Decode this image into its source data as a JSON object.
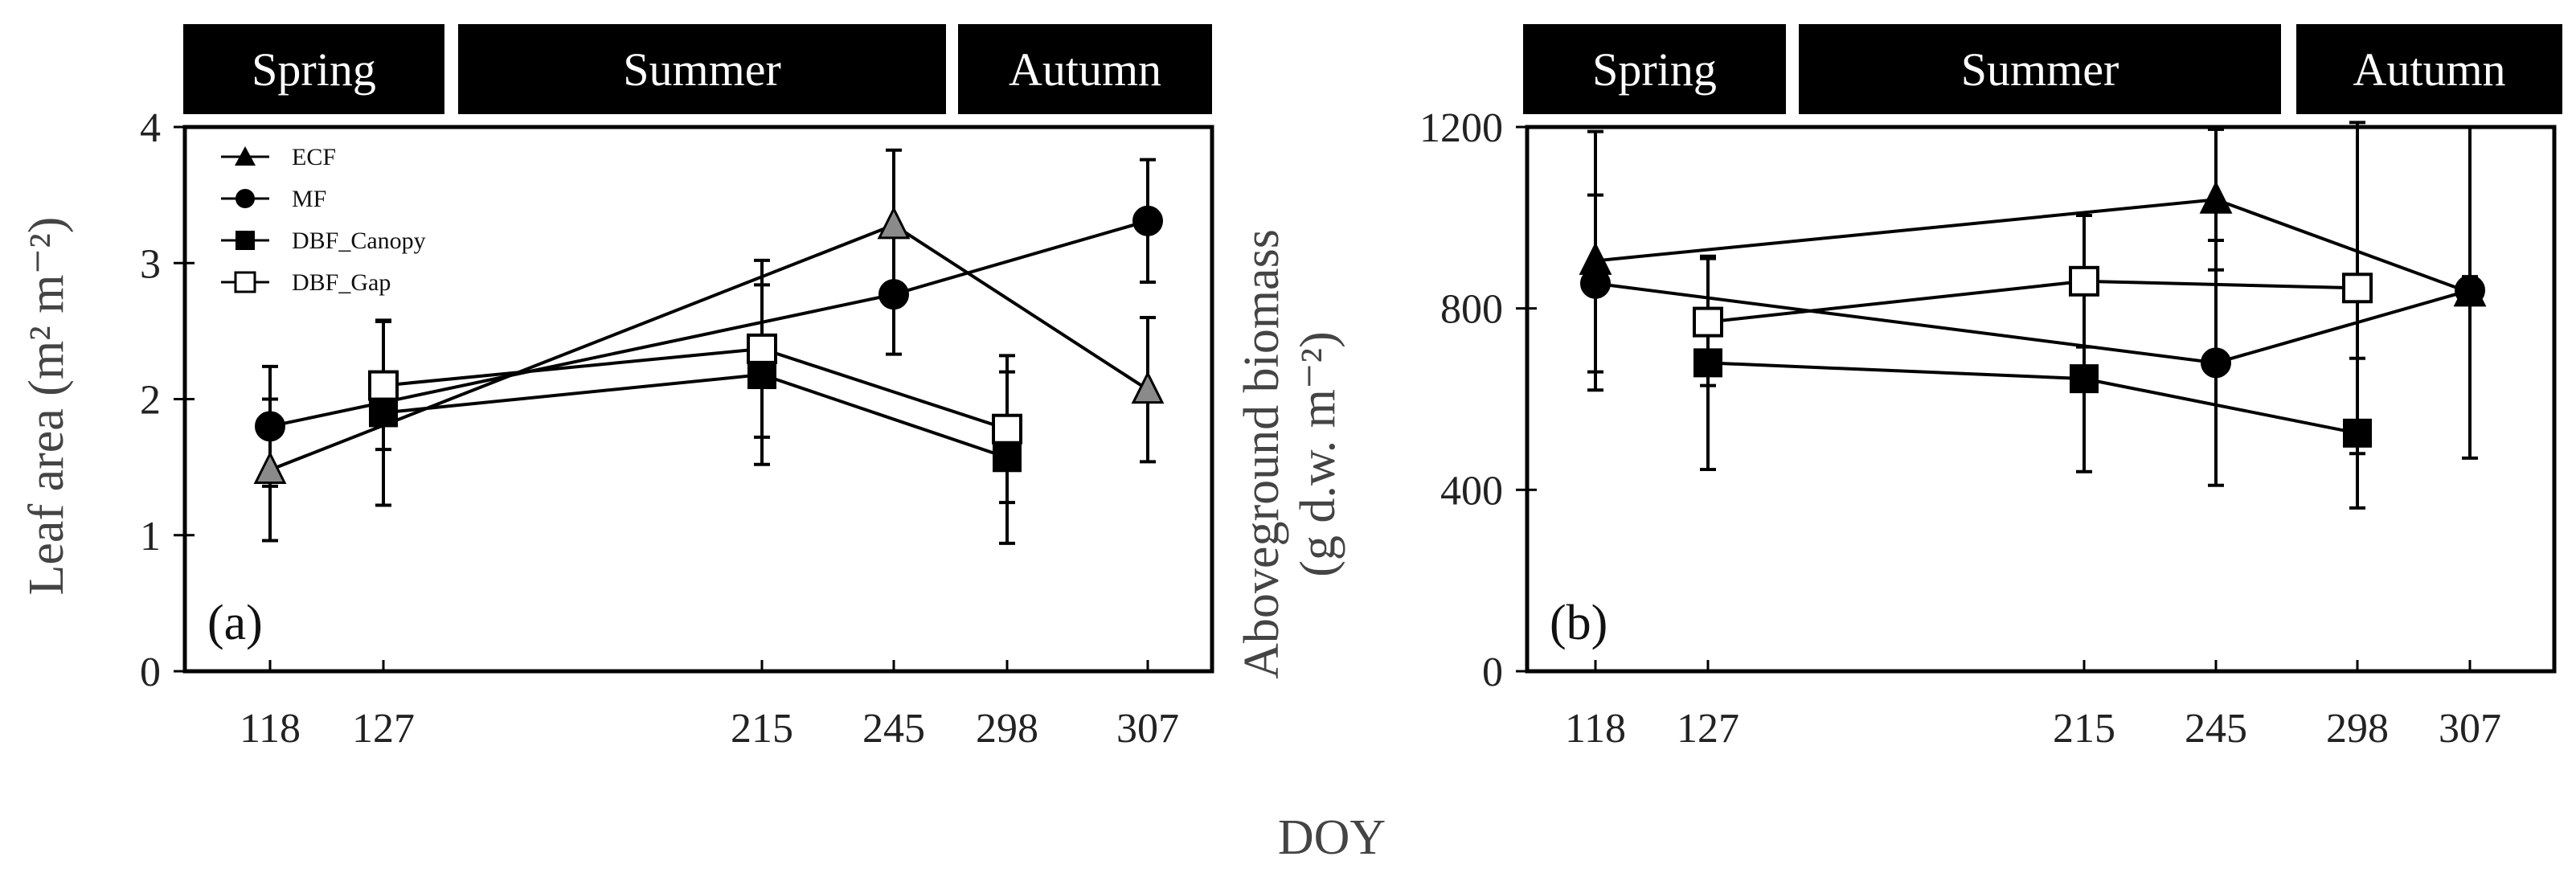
{
  "figure": {
    "shared_xlabel": "DOY"
  },
  "chart_data": [
    {
      "type": "line",
      "panel_label": "(a)",
      "ylabel": "Leaf area (m² m⁻²)",
      "xlabel": "DOY",
      "ylim": [
        0,
        4
      ],
      "yticks": [
        "0",
        "1",
        "2",
        "3",
        "4"
      ],
      "x_categories": [
        "118",
        "127",
        "215",
        "245",
        "298",
        "307"
      ],
      "seasons": [
        {
          "label": "Spring",
          "from": "118",
          "to": "127"
        },
        {
          "label": "Summer",
          "from": "215",
          "to": "245"
        },
        {
          "label": "Autumn",
          "from": "298",
          "to": "307"
        }
      ],
      "legend": [
        "ECF",
        "MF",
        "DBF_Canopy",
        "DBF_Gap"
      ],
      "series": [
        {
          "name": "ECF",
          "marker": "triangle-gray",
          "points": [
            {
              "x": 118,
              "y": 1.48,
              "err": 0.52
            },
            {
              "x": 245,
              "y": 3.28,
              "err": 0.55
            },
            {
              "x": 307,
              "y": 2.07,
              "err": 0.53
            }
          ]
        },
        {
          "name": "MF",
          "marker": "circle-filled",
          "points": [
            {
              "x": 118,
              "y": 1.8,
              "err": 0.44
            },
            {
              "x": 245,
              "y": 2.77,
              "err": 0.44
            },
            {
              "x": 307,
              "y": 3.31,
              "err": 0.45
            }
          ]
        },
        {
          "name": "DBF_Canopy",
          "marker": "square-filled",
          "points": [
            {
              "x": 127,
              "y": 1.9,
              "err": 0.68
            },
            {
              "x": 215,
              "y": 2.18,
              "err": 0.66
            },
            {
              "x": 298,
              "y": 1.57,
              "err": 0.63
            }
          ]
        },
        {
          "name": "DBF_Gap",
          "marker": "square-open",
          "points": [
            {
              "x": 127,
              "y": 2.1,
              "err": 0.47
            },
            {
              "x": 215,
              "y": 2.37,
              "err": 0.65
            },
            {
              "x": 298,
              "y": 1.78,
              "err": 0.54
            }
          ]
        }
      ]
    },
    {
      "type": "line",
      "panel_label": "(b)",
      "ylabel_line1": "Aboveground biomass",
      "ylabel_line2": "(g d.w. m⁻²)",
      "xlabel": "DOY",
      "ylim": [
        0,
        1200
      ],
      "yticks": [
        "0",
        "400",
        "800",
        "1200"
      ],
      "x_categories": [
        "118",
        "127",
        "215",
        "245",
        "298",
        "307"
      ],
      "seasons": [
        {
          "label": "Spring",
          "from": "118",
          "to": "127"
        },
        {
          "label": "Summer",
          "from": "215",
          "to": "245"
        },
        {
          "label": "Autumn",
          "from": "298",
          "to": "307"
        }
      ],
      "series": [
        {
          "name": "ECF",
          "marker": "triangle-filled",
          "points": [
            {
              "x": 118,
              "y": 905,
              "err": 285
            },
            {
              "x": 245,
              "y": 1040,
              "err": 155
            },
            {
              "x": 307,
              "y": 835,
              "err": 365
            }
          ]
        },
        {
          "name": "MF",
          "marker": "circle-filled",
          "points": [
            {
              "x": 118,
              "y": 855,
              "err": 195
            },
            {
              "x": 245,
              "y": 680,
              "err": 270
            },
            {
              "x": 307,
              "y": 840,
              "err": 30
            }
          ]
        },
        {
          "name": "DBF_Canopy",
          "marker": "square-filled",
          "points": [
            {
              "x": 127,
              "y": 680,
              "err": 235
            },
            {
              "x": 215,
              "y": 645,
              "err": 205
            },
            {
              "x": 298,
              "y": 525,
              "err": 165
            }
          ]
        },
        {
          "name": "DBF_Gap",
          "marker": "square-open",
          "points": [
            {
              "x": 127,
              "y": 770,
              "err": 140
            },
            {
              "x": 215,
              "y": 860,
              "err": 145
            },
            {
              "x": 298,
              "y": 845,
              "err": 365
            }
          ]
        }
      ]
    }
  ]
}
